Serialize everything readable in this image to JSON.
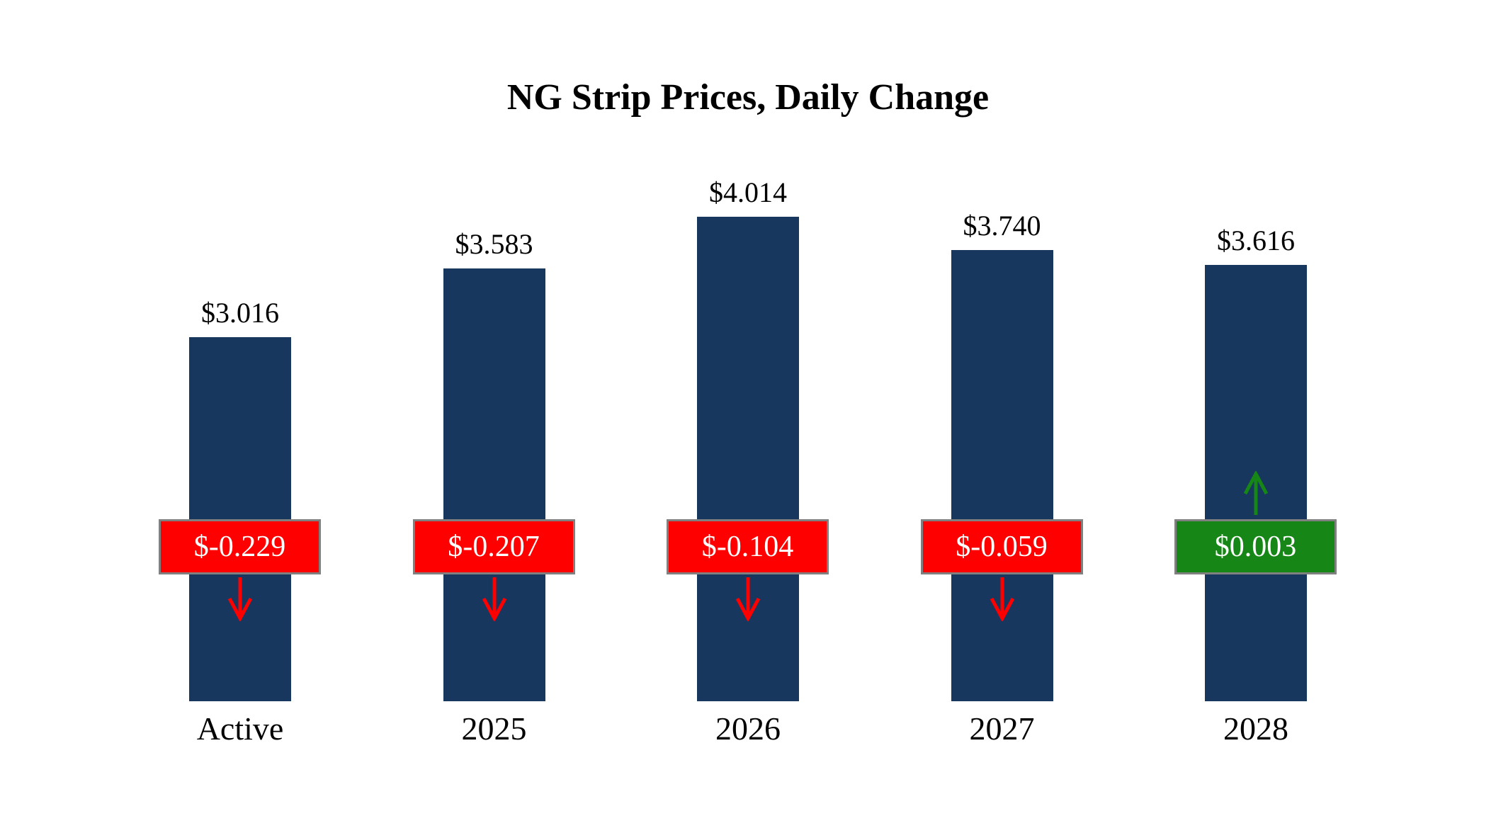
{
  "title": "NG Strip Prices, Daily Change",
  "chart_data": {
    "type": "bar",
    "title": "NG Strip Prices, Daily Change",
    "categories": [
      "Active",
      "2025",
      "2026",
      "2027",
      "2028"
    ],
    "values": [
      3.016,
      3.583,
      4.014,
      3.74,
      3.616
    ],
    "value_labels": [
      "$3.016",
      "$3.583",
      "$4.014",
      "$3.740",
      "$3.616"
    ],
    "changes": [
      -0.229,
      -0.207,
      -0.104,
      -0.059,
      0.003
    ],
    "change_labels": [
      "$-0.229",
      "$-0.207",
      "$-0.104",
      "$-0.059",
      "$0.003"
    ],
    "xlabel": "",
    "ylabel": "",
    "ylim": [
      0,
      4.8
    ],
    "grid": false,
    "legend": "none",
    "bar_color": "#17375E",
    "negative_color": "#FF0000",
    "positive_color": "#168616",
    "badge_border_color": "#808080"
  }
}
